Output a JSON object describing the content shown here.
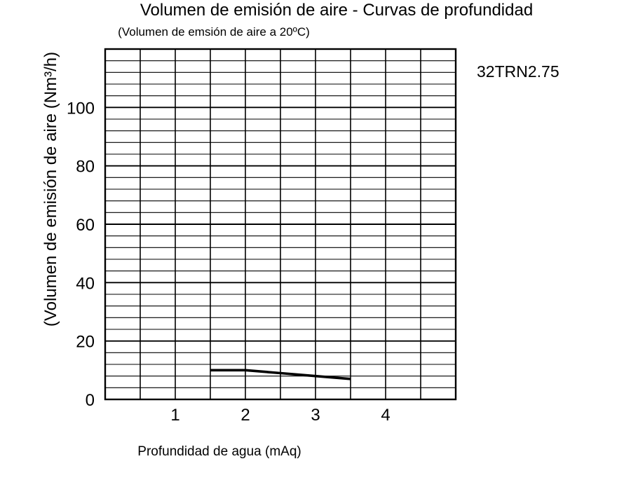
{
  "chart_data": {
    "type": "line",
    "title": "Volumen de emisión de aire - Curvas de profundidad",
    "subtitle": "(Volumen de emsión de aire a 20ºC)",
    "xlabel": "Profundidad de agua (mAq)",
    "ylabel": "(Volumen de emisión de aire (Nm³/h)",
    "model": "32TRN2.75",
    "xlim": [
      0,
      5
    ],
    "ylim": [
      0,
      120
    ],
    "x_ticks": [
      1,
      2,
      3,
      4
    ],
    "y_ticks": [
      0,
      20,
      40,
      60,
      80,
      100
    ],
    "x_major_step": 0.5,
    "y_major_step": 20,
    "y_minor_step": 4,
    "grid": true,
    "series": [
      {
        "x": [
          1.5,
          2.0,
          2.5,
          3.0,
          3.5
        ],
        "y": [
          10,
          10,
          9,
          8,
          7
        ]
      }
    ],
    "line_color": "#000000",
    "grid_color": "#000000"
  }
}
